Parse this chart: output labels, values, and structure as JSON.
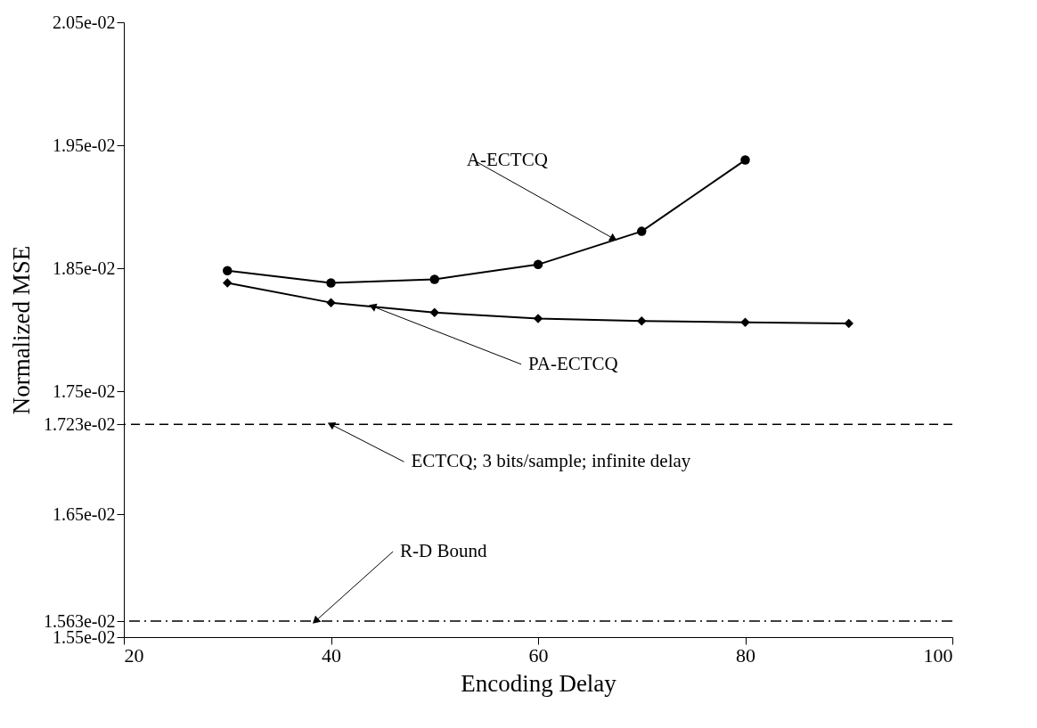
{
  "chart_data": {
    "type": "line",
    "xlabel": "Encoding Delay",
    "ylabel": "Normalized MSE",
    "xlim": [
      20,
      100
    ],
    "xticks": [
      20,
      40,
      60,
      80,
      100
    ],
    "ylim": [
      0.0155,
      0.0205
    ],
    "yticks": [
      {
        "value": 0.0155,
        "label": "1.55e-02"
      },
      {
        "value": 0.01563,
        "label": "1.563e-02"
      },
      {
        "value": 0.0165,
        "label": "1.65e-02"
      },
      {
        "value": 0.01723,
        "label": "1.723e-02"
      },
      {
        "value": 0.0175,
        "label": "1.75e-02"
      },
      {
        "value": 0.0185,
        "label": "1.85e-02"
      },
      {
        "value": 0.0195,
        "label": "1.95e-02"
      },
      {
        "value": 0.0205,
        "label": "2.05e-02"
      }
    ],
    "series": [
      {
        "color": "#000000",
        "marker": "circle",
        "x": [
          30,
          40,
          50,
          60,
          70,
          80
        ],
        "values": [
          0.01848,
          0.01838,
          0.01841,
          0.01853,
          0.0188,
          0.01938
        ]
      },
      {
        "color": "#000000",
        "marker": "diamond",
        "x": [
          30,
          40,
          50,
          60,
          70,
          80,
          90
        ],
        "values": [
          0.01838,
          0.01822,
          0.01814,
          0.01809,
          0.01807,
          0.01806,
          0.01805
        ]
      }
    ],
    "ref_lines": [
      {
        "axis": "y",
        "value": 0.01723,
        "color": "#000000",
        "line_style": "dashed"
      },
      {
        "axis": "y",
        "value": 0.01563,
        "color": "#000000",
        "line_style": "dashdot"
      }
    ],
    "annotations": [
      {
        "text": "A-ECTCQ",
        "x": 67.3,
        "y": 0.01874
      },
      {
        "text": "PA-ECTCQ",
        "x": 44,
        "y": 0.01819
      },
      {
        "text": "ECTCQ; 3 bits/sample; infinite delay",
        "x": 40,
        "y": 0.01723
      },
      {
        "text": "R-D Bound",
        "x": 38.5,
        "y": 0.01563
      }
    ],
    "grid": false
  }
}
